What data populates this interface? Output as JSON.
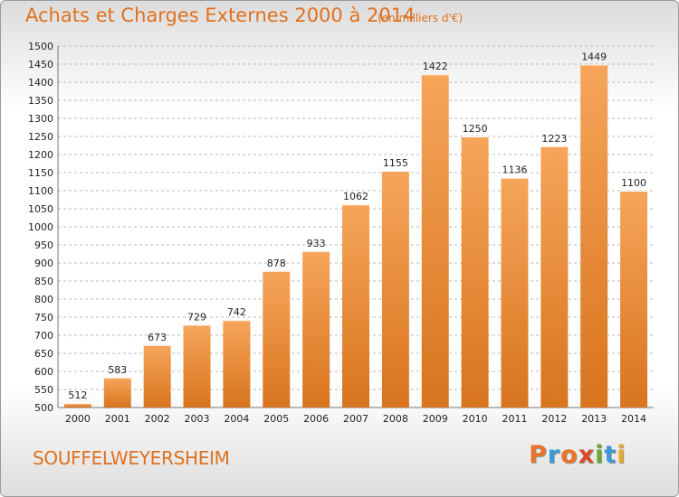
{
  "title": "Achats et Charges Externes 2000 à 2014",
  "subtitle": "(en milliers d'€)",
  "commune": "SOUFFELWEYERSHEIM",
  "logo": {
    "text": "Proxiti",
    "letters": [
      "P",
      "r",
      "o",
      "x",
      "i",
      "t",
      "i"
    ],
    "colors": [
      "#e8742a",
      "#3b9ad9",
      "#e8742a",
      "#d94a2a",
      "#6aab2e",
      "#3b9ad9",
      "#e8a72a"
    ]
  },
  "colors": {
    "bar_top": "#f6a55a",
    "bar_bottom": "#d8741e",
    "title": "#e0711e",
    "grid": "#b8b8b8"
  },
  "chart_data": {
    "type": "bar",
    "title": "Achats et Charges Externes 2000 à 2014",
    "subtitle": "(en milliers d'€)",
    "categories": [
      "2000",
      "2001",
      "2002",
      "2003",
      "2004",
      "2005",
      "2006",
      "2007",
      "2008",
      "2009",
      "2010",
      "2011",
      "2012",
      "2013",
      "2014"
    ],
    "values": [
      512,
      583,
      673,
      729,
      742,
      878,
      933,
      1062,
      1155,
      1422,
      1250,
      1136,
      1223,
      1449,
      1100
    ],
    "ylim": [
      500,
      1500
    ],
    "ytick_step": 50,
    "grid": true,
    "data_labels": true
  }
}
